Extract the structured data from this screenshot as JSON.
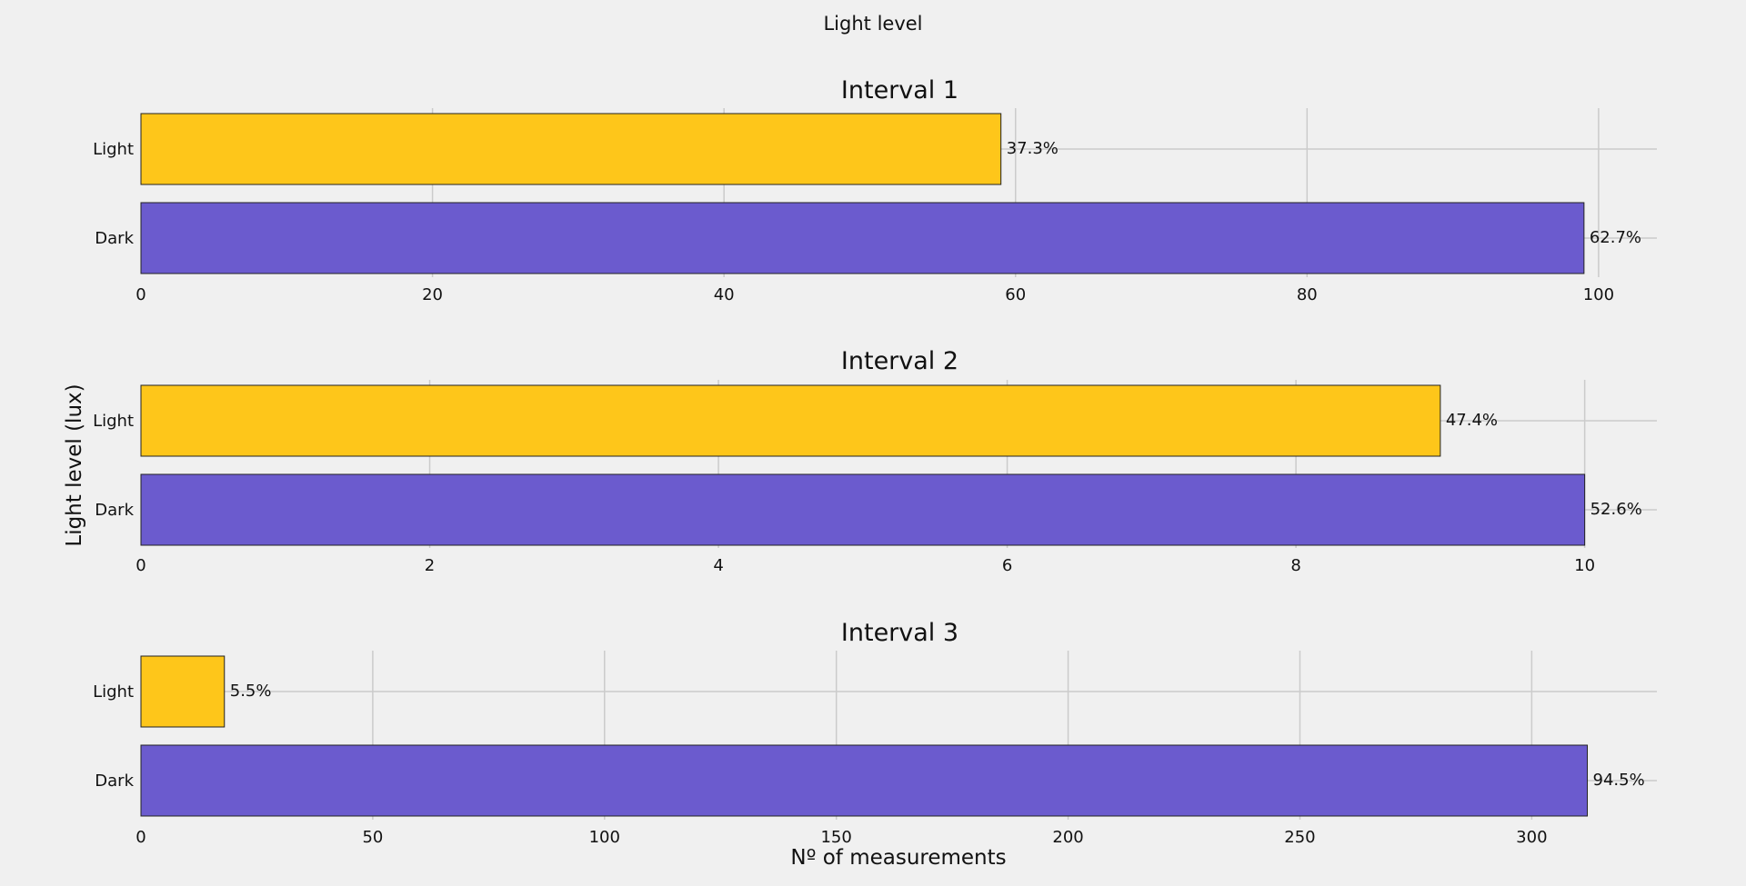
{
  "figure": {
    "suptitle": "Light level",
    "ylabel": "Light level (lux)",
    "xlabel": "Nº of measurements"
  },
  "colors": {
    "background": "#f0f0f0",
    "grid": "#cbcbcb",
    "light_bar": "#fec61a",
    "dark_bar": "#6b5bce",
    "bar_edge": "#222222"
  },
  "chart_data": [
    {
      "type": "bar",
      "orientation": "horizontal",
      "title": "Interval 1",
      "categories": [
        "Light",
        "Dark"
      ],
      "values": [
        59,
        99
      ],
      "labels": [
        "37.3%",
        "62.7%"
      ],
      "xticks": [
        0,
        20,
        40,
        60,
        80,
        100
      ],
      "xlim": [
        0,
        104
      ],
      "grid": true
    },
    {
      "type": "bar",
      "orientation": "horizontal",
      "title": "Interval 2",
      "categories": [
        "Light",
        "Dark"
      ],
      "values": [
        9,
        10
      ],
      "labels": [
        "47.4%",
        "52.6%"
      ],
      "xticks": [
        0,
        2,
        4,
        6,
        8,
        10
      ],
      "xlim": [
        0,
        10.5
      ],
      "grid": true
    },
    {
      "type": "bar",
      "orientation": "horizontal",
      "title": "Interval 3",
      "categories": [
        "Light",
        "Dark"
      ],
      "values": [
        18,
        312
      ],
      "labels": [
        "5.5%",
        "94.5%"
      ],
      "xticks": [
        0,
        50,
        100,
        150,
        200,
        250,
        300
      ],
      "xlim": [
        0,
        327
      ],
      "grid": true
    }
  ]
}
